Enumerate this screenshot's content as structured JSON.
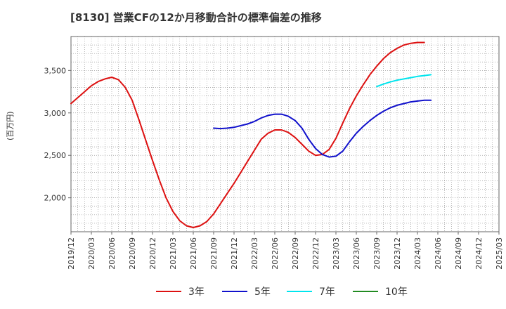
{
  "chart_data": {
    "type": "line",
    "title": "[8130]  営業CFの12か月移動合計の標準偏差の推移",
    "ylabel": "(百万円)",
    "ylim": [
      1600,
      3900
    ],
    "yticks": [
      2000,
      2500,
      3000,
      3500
    ],
    "ytick_labels": [
      "2,000",
      "2,500",
      "3,000",
      "3,500"
    ],
    "x_range": [
      "2019-12",
      "2025-03"
    ],
    "xtick_labels": [
      "2019/12",
      "2020/03",
      "2020/06",
      "2020/09",
      "2020/12",
      "2021/03",
      "2021/06",
      "2021/09",
      "2021/12",
      "2022/03",
      "2022/06",
      "2022/09",
      "2022/12",
      "2023/03",
      "2023/06",
      "2023/09",
      "2023/12",
      "2024/03",
      "2024/06",
      "2024/09",
      "2024/12",
      "2025/03"
    ],
    "grid": true,
    "legend_position": "bottom",
    "series": [
      {
        "name": "3年",
        "color": "#dd1111",
        "start": "2019-12",
        "values": [
          3110,
          3180,
          3250,
          3320,
          3370,
          3400,
          3420,
          3390,
          3300,
          3150,
          2920,
          2680,
          2440,
          2210,
          2000,
          1840,
          1730,
          1670,
          1650,
          1670,
          1720,
          1810,
          1930,
          2050,
          2170,
          2300,
          2430,
          2560,
          2690,
          2760,
          2800,
          2800,
          2770,
          2710,
          2630,
          2550,
          2500,
          2510,
          2570,
          2700,
          2880,
          3050,
          3200,
          3330,
          3450,
          3550,
          3640,
          3710,
          3760,
          3800,
          3820,
          3830,
          3830
        ]
      },
      {
        "name": "5年",
        "color": "#1111cc",
        "start": "2021-09",
        "values": [
          2820,
          2815,
          2820,
          2830,
          2850,
          2870,
          2900,
          2940,
          2970,
          2985,
          2985,
          2960,
          2910,
          2820,
          2690,
          2580,
          2510,
          2480,
          2490,
          2550,
          2660,
          2760,
          2840,
          2910,
          2970,
          3020,
          3060,
          3090,
          3110,
          3130,
          3140,
          3150,
          3150
        ]
      },
      {
        "name": "7年",
        "color": "#00e5ee",
        "start": "2023-09",
        "values": [
          3310,
          3340,
          3365,
          3385,
          3400,
          3415,
          3430,
          3440,
          3450
        ]
      },
      {
        "name": "10年",
        "color": "#228b22",
        "start": "2024-03",
        "values": []
      }
    ]
  }
}
